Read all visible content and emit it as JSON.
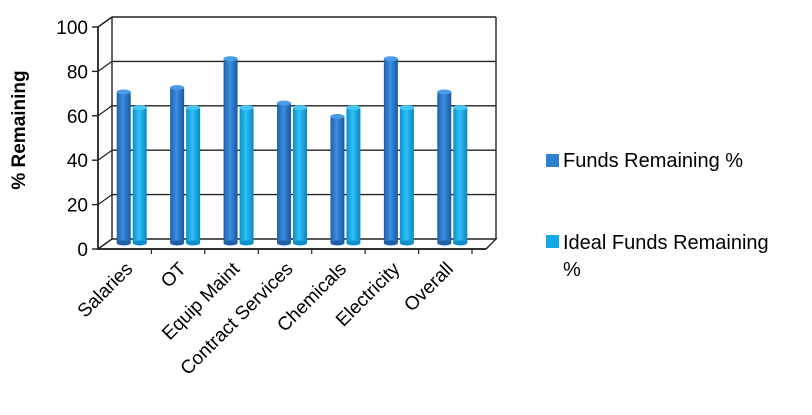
{
  "chart_data": {
    "type": "bar",
    "title": "",
    "xlabel": "",
    "ylabel": "% Remaining",
    "ylim": [
      0,
      100
    ],
    "yticks": [
      0,
      20,
      40,
      60,
      80,
      100
    ],
    "grid": true,
    "legend_position": "right",
    "categories": [
      "Salaries",
      "OT",
      "Equip Maint",
      "Contract Services",
      "Chemicals",
      "Electricity",
      "Overall"
    ],
    "series": [
      {
        "name": "Funds Remaining %",
        "color": "#2e7fd0",
        "values": [
          68,
          70,
          83,
          63,
          57,
          83,
          68
        ]
      },
      {
        "name": "Ideal Funds Remaining %",
        "color": "#14a8e6",
        "values": [
          61,
          61,
          61,
          61,
          61,
          61,
          61
        ]
      }
    ]
  }
}
